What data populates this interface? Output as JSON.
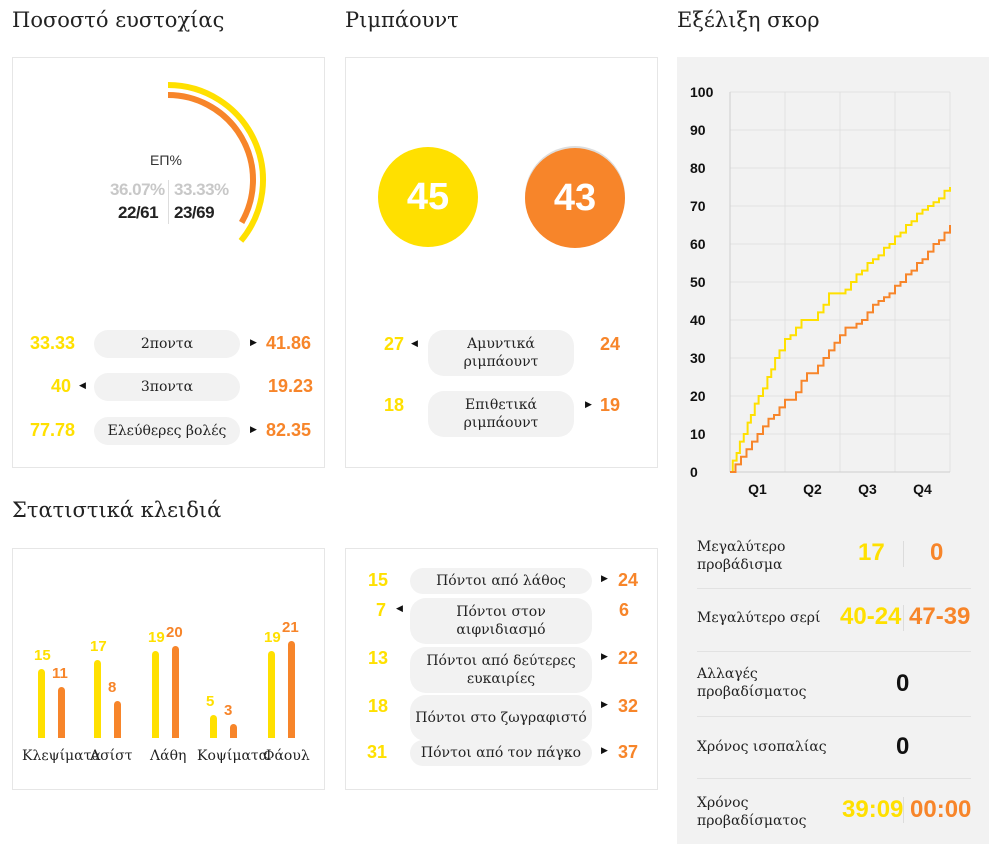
{
  "sections": {
    "shooting": "Ποσοστό ευστοχίας",
    "rebounds": "Ριμπάουντ",
    "score_evolution": "Εξέλιξη σκορ",
    "key_stats": "Στατιστικά κλειδιά"
  },
  "colors": {
    "team_a": "#ffe000",
    "team_b": "#f7852a"
  },
  "shooting": {
    "center_label": "ΕΠ%",
    "team_a_pct": "36.07%",
    "team_b_pct": "33.33%",
    "team_a_made": "22/61",
    "team_b_made": "23/69",
    "rows": [
      {
        "a": "33.33",
        "label": "2ποντα",
        "b": "41.86",
        "leader": "b"
      },
      {
        "a": "40",
        "label": "3ποντα",
        "b": "19.23",
        "leader": "a"
      },
      {
        "a": "77.78",
        "label": "Ελεύθερες βολές",
        "b": "82.35",
        "leader": "b"
      }
    ]
  },
  "rebounds": {
    "team_a_total": "45",
    "team_b_total": "43",
    "rows": [
      {
        "a": "27",
        "label": "Αμυντικά ριμπάουντ",
        "b": "24",
        "leader": "a"
      },
      {
        "a": "18",
        "label": "Επιθετικά ριμπάουντ",
        "b": "19",
        "leader": "b"
      }
    ]
  },
  "key_stats": {
    "categories": [
      "Κλεψίματα",
      "Ασίστ",
      "Λάθη",
      "Κοψίματα",
      "Φάουλ"
    ],
    "team_a": [
      "15",
      "17",
      "19",
      "5",
      "19"
    ],
    "team_b": [
      "11",
      "8",
      "20",
      "3",
      "21"
    ]
  },
  "points": {
    "rows": [
      {
        "a": "15",
        "label": "Πόντοι από λάθος",
        "b": "24",
        "leader": "b"
      },
      {
        "a": "7",
        "label": "Πόντοι στον αιφνιδιασμό",
        "b": "6",
        "leader": "a"
      },
      {
        "a": "13",
        "label": "Πόντοι από δεύτερες ευκαιρίες",
        "b": "22",
        "leader": "b"
      },
      {
        "a": "18",
        "label": "Πόντοι στο ζωγραφιστό",
        "b": "32",
        "leader": "b"
      },
      {
        "a": "31",
        "label": "Πόντοι από τον πάγκο",
        "b": "37",
        "leader": "b"
      }
    ]
  },
  "chart_data": {
    "type": "line",
    "title": "Εξέλιξη σκορ",
    "y_ticks": [
      "0",
      "10",
      "20",
      "30",
      "40",
      "50",
      "60",
      "70",
      "80",
      "90",
      "100"
    ],
    "x_ticks": [
      "Q1",
      "Q2",
      "Q3",
      "Q4"
    ],
    "ylim": [
      0,
      100
    ],
    "xlim": [
      0,
      40
    ],
    "grid": true,
    "series": [
      {
        "color": "#ffe000",
        "x": [
          0,
          0.5,
          1.2,
          1.8,
          2.5,
          3.2,
          3.8,
          4.5,
          5.2,
          6,
          6.8,
          7.5,
          8.2,
          9,
          10,
          11,
          12,
          13,
          14,
          15,
          16,
          17,
          18,
          19,
          20,
          21,
          22,
          23,
          24,
          25,
          26,
          27,
          28,
          29,
          30,
          31,
          32,
          33,
          34,
          35,
          36,
          37,
          38,
          39,
          40
        ],
        "y": [
          0,
          3,
          5,
          8,
          10,
          13,
          15,
          18,
          20,
          22,
          25,
          27,
          30,
          32,
          35,
          36,
          38,
          40,
          40,
          40,
          42,
          44,
          47,
          47,
          47,
          48,
          50,
          52,
          53,
          55,
          56,
          57,
          59,
          60,
          62,
          63,
          65,
          66,
          68,
          69,
          70,
          71,
          72,
          74,
          75
        ]
      },
      {
        "color": "#f7852a",
        "x": [
          0,
          1,
          2,
          3,
          4,
          5,
          6,
          7,
          8,
          9,
          10,
          11,
          12,
          13,
          14,
          15,
          16,
          17,
          18,
          19,
          20,
          21,
          22,
          23,
          24,
          25,
          26,
          27,
          28,
          29,
          30,
          31,
          32,
          33,
          34,
          35,
          36,
          37,
          38,
          39,
          40
        ],
        "y": [
          0,
          2,
          4,
          6,
          8,
          10,
          12,
          14,
          15,
          17,
          19,
          19,
          21,
          24,
          26,
          26,
          28,
          30,
          32,
          34,
          36,
          38,
          38,
          39,
          40,
          42,
          44,
          45,
          46,
          47,
          49,
          50,
          52,
          53,
          55,
          56,
          58,
          60,
          61,
          63,
          65
        ]
      }
    ]
  },
  "summary": {
    "rows": [
      {
        "label": "Μεγαλύτερο προβάδισμα",
        "a": "17",
        "b": "0"
      },
      {
        "label": "Μεγαλύτερο σερί",
        "a": "40-24",
        "b": "47-39"
      },
      {
        "label": "Αλλαγές προβαδίσματος",
        "single": "0"
      },
      {
        "label": "Χρόνος ισοπαλίας",
        "single": "0"
      },
      {
        "label": "Χρόνος προβαδίσματος",
        "a": "39:09",
        "b": "00:00"
      }
    ]
  },
  "arrows": {
    "right": "▶",
    "left": "◀"
  }
}
